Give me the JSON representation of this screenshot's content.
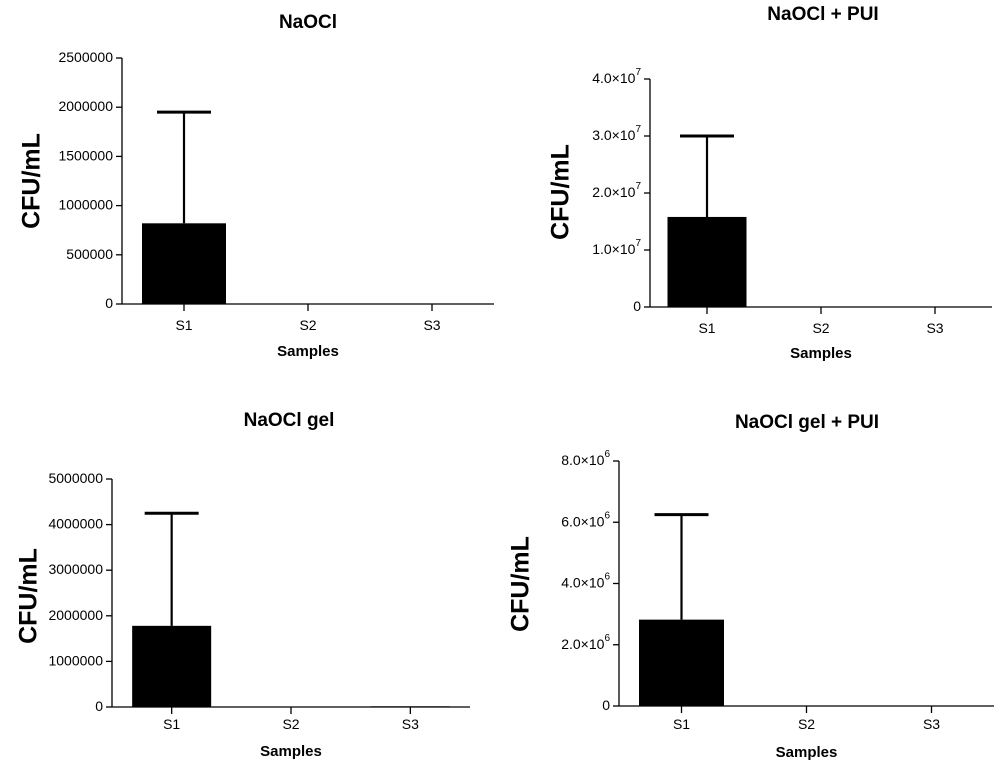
{
  "chart_data": [
    {
      "type": "bar",
      "title": "NaOCl",
      "xlabel": "Samples",
      "ylabel": "CFU/mL",
      "categories": [
        "S1",
        "S2",
        "S3"
      ],
      "values": [
        820000,
        0,
        0
      ],
      "error_upper": [
        1950000,
        0,
        0
      ],
      "ylim": [
        0,
        2500000
      ],
      "yticks": [
        {
          "value": 0,
          "label": "0"
        },
        {
          "value": 500000,
          "label": "500000"
        },
        {
          "value": 1000000,
          "label": "1000000"
        },
        {
          "value": 1500000,
          "label": "1500000"
        },
        {
          "value": 2000000,
          "label": "2000000"
        },
        {
          "value": 2500000,
          "label": "2500000"
        }
      ],
      "grid": false
    },
    {
      "type": "bar",
      "title": "NaOCl + PUI",
      "xlabel": "Samples",
      "ylabel": "CFU/mL",
      "categories": [
        "S1",
        "S2",
        "S3"
      ],
      "values": [
        15800000,
        0,
        0
      ],
      "error_upper": [
        30000000,
        0,
        0
      ],
      "ylim": [
        0,
        40000000
      ],
      "yticks": [
        {
          "value": 0,
          "label": "0"
        },
        {
          "value": 10000000,
          "label": "1.0×10",
          "exp": "7"
        },
        {
          "value": 20000000,
          "label": "2.0×10",
          "exp": "7"
        },
        {
          "value": 30000000,
          "label": "3.0×10",
          "exp": "7"
        },
        {
          "value": 40000000,
          "label": "4.0×10",
          "exp": "7"
        }
      ],
      "grid": false
    },
    {
      "type": "bar",
      "title": "NaOCl gel",
      "xlabel": "Samples",
      "ylabel": "CFU/mL",
      "categories": [
        "S1",
        "S2",
        "S3"
      ],
      "values": [
        1780000,
        0,
        15000
      ],
      "error_upper": [
        4250000,
        0,
        0
      ],
      "ylim": [
        0,
        5000000
      ],
      "yticks": [
        {
          "value": 0,
          "label": "0"
        },
        {
          "value": 1000000,
          "label": "1000000"
        },
        {
          "value": 2000000,
          "label": "2000000"
        },
        {
          "value": 3000000,
          "label": "3000000"
        },
        {
          "value": 4000000,
          "label": "4000000"
        },
        {
          "value": 5000000,
          "label": "5000000"
        }
      ],
      "grid": false
    },
    {
      "type": "bar",
      "title": "NaOCl gel + PUI",
      "xlabel": "Samples",
      "ylabel": "CFU/mL",
      "categories": [
        "S1",
        "S2",
        "S3"
      ],
      "values": [
        2820000,
        0,
        0
      ],
      "error_upper": [
        6250000,
        0,
        0
      ],
      "ylim": [
        0,
        8000000
      ],
      "yticks": [
        {
          "value": 0,
          "label": "0"
        },
        {
          "value": 2000000,
          "label": "2.0×10",
          "exp": "6"
        },
        {
          "value": 4000000,
          "label": "4.0×10",
          "exp": "6"
        },
        {
          "value": 6000000,
          "label": "6.0×10",
          "exp": "6"
        },
        {
          "value": 8000000,
          "label": "8.0×10",
          "exp": "6"
        }
      ],
      "grid": false
    }
  ]
}
